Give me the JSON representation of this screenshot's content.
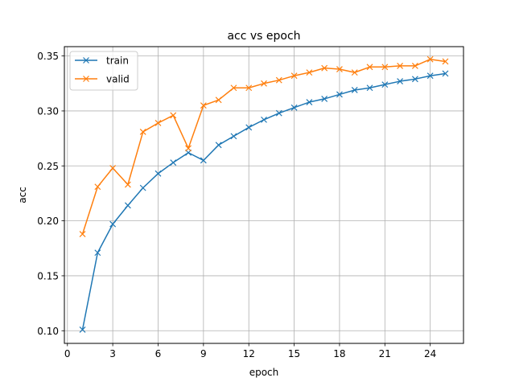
{
  "chart_data": {
    "type": "line",
    "title": "acc vs epoch",
    "xlabel": "epoch",
    "ylabel": "acc",
    "xlim": [
      -0.2,
      26.2
    ],
    "ylim": [
      0.0885,
      0.3585
    ],
    "xticks": [
      0,
      3,
      6,
      9,
      12,
      15,
      18,
      21,
      24
    ],
    "yticks": [
      0.1,
      0.15,
      0.2,
      0.25,
      0.3,
      0.35
    ],
    "xtick_labels": [
      "0",
      "3",
      "6",
      "9",
      "12",
      "15",
      "18",
      "21",
      "24"
    ],
    "ytick_labels": [
      "0.10",
      "0.15",
      "0.20",
      "0.25",
      "0.30",
      "0.35"
    ],
    "grid": true,
    "legend_position": "top-left",
    "marker": "x",
    "x": [
      1,
      2,
      3,
      4,
      5,
      6,
      7,
      8,
      9,
      10,
      11,
      12,
      13,
      14,
      15,
      16,
      17,
      18,
      19,
      20,
      21,
      22,
      23,
      24,
      25
    ],
    "series": [
      {
        "name": "train",
        "color": "#1f77b4",
        "values": [
          0.101,
          0.171,
          0.197,
          0.214,
          0.23,
          0.243,
          0.253,
          0.262,
          0.255,
          0.269,
          0.277,
          0.285,
          0.292,
          0.298,
          0.303,
          0.308,
          0.311,
          0.315,
          0.319,
          0.321,
          0.324,
          0.327,
          0.329,
          0.332,
          0.334
        ]
      },
      {
        "name": "valid",
        "color": "#ff7f0e",
        "values": [
          0.188,
          0.231,
          0.248,
          0.233,
          0.281,
          0.289,
          0.296,
          0.266,
          0.305,
          0.31,
          0.321,
          0.321,
          0.325,
          0.328,
          0.332,
          0.335,
          0.339,
          0.338,
          0.335,
          0.34,
          0.34,
          0.341,
          0.341,
          0.347,
          0.345
        ]
      }
    ]
  }
}
